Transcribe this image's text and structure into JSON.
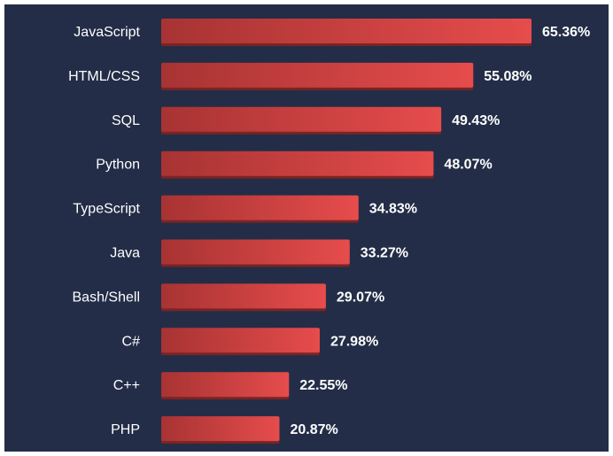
{
  "chart_data": {
    "type": "bar",
    "orientation": "horizontal",
    "categories": [
      "JavaScript",
      "HTML/CSS",
      "SQL",
      "Python",
      "TypeScript",
      "Java",
      "Bash/Shell",
      "C#",
      "C++",
      "PHP"
    ],
    "values": [
      65.36,
      55.08,
      49.43,
      48.07,
      34.83,
      33.27,
      29.07,
      27.98,
      22.55,
      20.87
    ],
    "value_labels": [
      "65.36%",
      "55.08%",
      "49.43%",
      "48.07%",
      "34.83%",
      "33.27%",
      "29.07%",
      "27.98%",
      "22.55%",
      "20.87%"
    ],
    "unit": "%",
    "title": "",
    "xlabel": "",
    "ylabel": "",
    "xlim": [
      0,
      65.36
    ],
    "grid": false,
    "legend": "none",
    "colors": {
      "background": "#232d47",
      "bar_start": "#a83333",
      "bar_end": "#e64c4c",
      "bar_shadow": "#7a2424",
      "text": "#ffffff"
    }
  }
}
